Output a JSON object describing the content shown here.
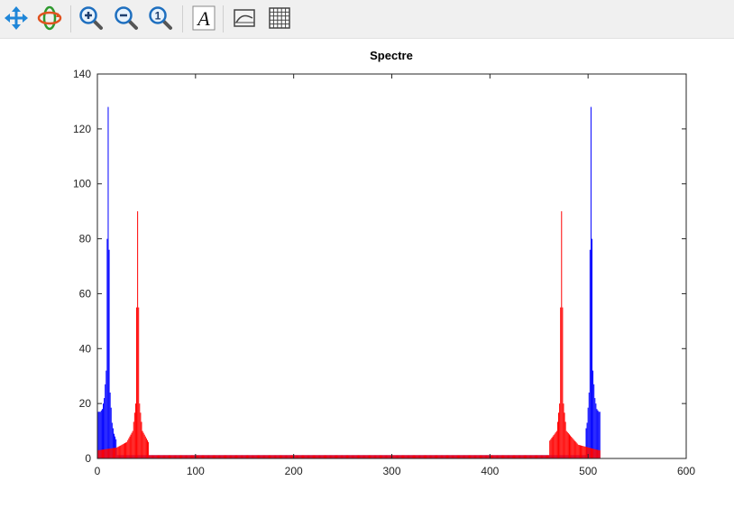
{
  "toolbar": {
    "buttons": [
      {
        "name": "pan-button",
        "icon": "pan-icon"
      },
      {
        "name": "rotate-3d-button",
        "icon": "rotate-3d-icon"
      },
      {
        "name": "zoom-in-button",
        "icon": "zoom-in-icon"
      },
      {
        "name": "zoom-out-button",
        "icon": "zoom-out-icon"
      },
      {
        "name": "zoom-reset-button",
        "icon": "zoom-reset-icon"
      },
      {
        "name": "insert-text-button",
        "icon": "text-icon"
      },
      {
        "name": "toggle-axes-box-button",
        "icon": "axes-box-icon"
      },
      {
        "name": "toggle-grid-button",
        "icon": "grid-icon"
      }
    ],
    "text_icon_glyph": "A",
    "zoom_reset_glyph": "1"
  },
  "chart_data": {
    "type": "bar",
    "title": "Spectre",
    "xlabel": "",
    "ylabel": "",
    "xlim": [
      0,
      600
    ],
    "ylim": [
      0,
      140
    ],
    "xticks": [
      0,
      100,
      200,
      300,
      400,
      500,
      600
    ],
    "yticks": [
      0,
      20,
      40,
      60,
      80,
      100,
      120,
      140
    ],
    "grid": false,
    "legend": "none",
    "n_points": 512,
    "series": [
      {
        "color": "#0000ff",
        "peaks": [
          {
            "x": 11,
            "y": 128
          },
          {
            "x": 503,
            "y": 128
          }
        ],
        "sample_values": [
          {
            "x": 3,
            "y": 17
          },
          {
            "x": 5,
            "y": 18
          },
          {
            "x": 7,
            "y": 22
          },
          {
            "x": 9,
            "y": 32
          },
          {
            "x": 11,
            "y": 128
          },
          {
            "x": 13,
            "y": 24
          },
          {
            "x": 15,
            "y": 13
          },
          {
            "x": 17,
            "y": 9
          },
          {
            "x": 19,
            "y": 7
          },
          {
            "x": 497,
            "y": 9
          },
          {
            "x": 499,
            "y": 13
          },
          {
            "x": 501,
            "y": 24
          },
          {
            "x": 503,
            "y": 128
          },
          {
            "x": 505,
            "y": 32
          },
          {
            "x": 507,
            "y": 22
          },
          {
            "x": 509,
            "y": 18
          },
          {
            "x": 511,
            "y": 17
          }
        ]
      },
      {
        "color": "#ff0000",
        "peaks": [
          {
            "x": 41,
            "y": 90
          },
          {
            "x": 473,
            "y": 90
          }
        ],
        "sample_values": [
          {
            "x": 1,
            "y": 3
          },
          {
            "x": 20,
            "y": 4
          },
          {
            "x": 30,
            "y": 6
          },
          {
            "x": 36,
            "y": 10
          },
          {
            "x": 39,
            "y": 20
          },
          {
            "x": 41,
            "y": 90
          },
          {
            "x": 43,
            "y": 20
          },
          {
            "x": 46,
            "y": 10
          },
          {
            "x": 52,
            "y": 6
          },
          {
            "x": 460,
            "y": 6
          },
          {
            "x": 468,
            "y": 10
          },
          {
            "x": 471,
            "y": 20
          },
          {
            "x": 473,
            "y": 90
          },
          {
            "x": 475,
            "y": 20
          },
          {
            "x": 478,
            "y": 10
          },
          {
            "x": 490,
            "y": 5
          },
          {
            "x": 511,
            "y": 3
          }
        ]
      }
    ]
  }
}
